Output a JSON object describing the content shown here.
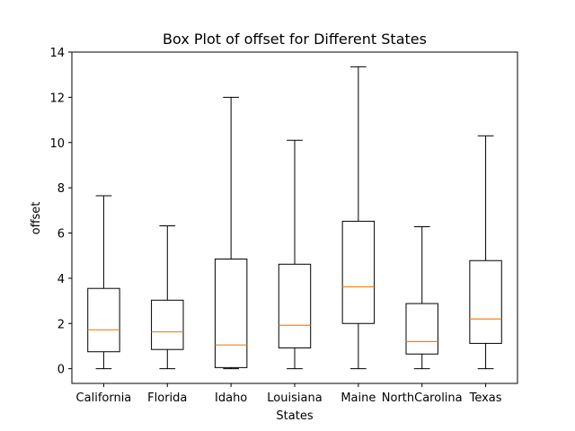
{
  "chart_data": {
    "type": "box",
    "title": "Box Plot of offset for Different States",
    "xlabel": "States",
    "ylabel": "offset",
    "ylim": [
      -0.65,
      14
    ],
    "yticks": [
      0,
      2,
      4,
      6,
      8,
      10,
      12,
      14
    ],
    "ytick_labels": [
      "0",
      "2",
      "4",
      "6",
      "8",
      "10",
      "12",
      "14"
    ],
    "grid": false,
    "colors": {
      "box": "#000000",
      "median": "#ff7f0e",
      "axes": "#000000"
    },
    "categories": [
      "California",
      "Florida",
      "Idaho",
      "Louisiana",
      "Maine",
      "NorthCarolina",
      "Texas"
    ],
    "boxes": [
      {
        "category": "California",
        "whisker_low": 0.0,
        "q1": 0.75,
        "median": 1.72,
        "q3": 3.55,
        "whisker_high": 7.65
      },
      {
        "category": "Florida",
        "whisker_low": 0.0,
        "q1": 0.85,
        "median": 1.63,
        "q3": 3.03,
        "whisker_high": 6.32
      },
      {
        "category": "Idaho",
        "whisker_low": 0.0,
        "q1": 0.05,
        "median": 1.05,
        "q3": 4.85,
        "whisker_high": 12.0
      },
      {
        "category": "Louisiana",
        "whisker_low": 0.0,
        "q1": 0.92,
        "median": 1.92,
        "q3": 4.62,
        "whisker_high": 10.1
      },
      {
        "category": "Maine",
        "whisker_low": 0.0,
        "q1": 2.0,
        "median": 3.62,
        "q3": 6.52,
        "whisker_high": 13.35
      },
      {
        "category": "NorthCarolina",
        "whisker_low": 0.0,
        "q1": 0.65,
        "median": 1.2,
        "q3": 2.88,
        "whisker_high": 6.28
      },
      {
        "category": "Texas",
        "whisker_low": 0.0,
        "q1": 1.12,
        "median": 2.2,
        "q3": 4.78,
        "whisker_high": 10.3
      }
    ]
  }
}
